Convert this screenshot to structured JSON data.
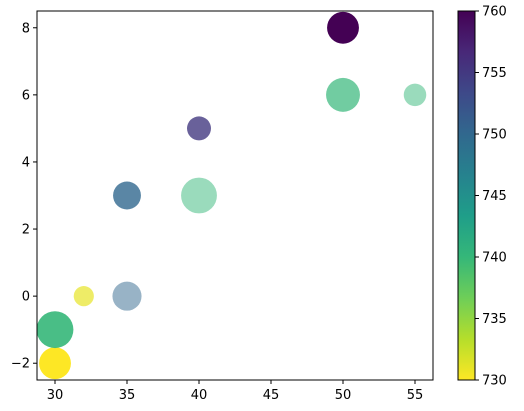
{
  "chart_data": {
    "type": "scatter",
    "title": "",
    "xlabel": "",
    "ylabel": "",
    "xlim": [
      28.75,
      56.25
    ],
    "ylim": [
      -2.5,
      8.5
    ],
    "xticks": [
      30,
      35,
      40,
      45,
      50,
      55
    ],
    "yticks": [
      -2,
      0,
      2,
      4,
      6,
      8
    ],
    "points": [
      {
        "x": 30,
        "y": -2,
        "c": 730,
        "size": 300,
        "alpha": 1.0
      },
      {
        "x": 30,
        "y": -1,
        "c": 740,
        "size": 400,
        "alpha": 0.9
      },
      {
        "x": 32,
        "y": 0,
        "c": 731,
        "size": 120,
        "alpha": 0.7
      },
      {
        "x": 35,
        "y": 0,
        "c": 750,
        "size": 250,
        "alpha": 0.5
      },
      {
        "x": 35,
        "y": 3,
        "c": 750,
        "size": 230,
        "alpha": 0.8
      },
      {
        "x": 40,
        "y": 3,
        "c": 740,
        "size": 380,
        "alpha": 0.5
      },
      {
        "x": 40,
        "y": 5,
        "c": 755,
        "size": 170,
        "alpha": 0.8
      },
      {
        "x": 50,
        "y": 6,
        "c": 740,
        "size": 340,
        "alpha": 0.7
      },
      {
        "x": 50,
        "y": 8,
        "c": 760,
        "size": 300,
        "alpha": 1.0
      },
      {
        "x": 55,
        "y": 6,
        "c": 740,
        "size": 150,
        "alpha": 0.5
      }
    ],
    "colorbar": {
      "min": 730,
      "max": 760,
      "ticks": [
        730,
        735,
        740,
        745,
        750,
        755,
        760
      ],
      "colormap": "viridis_r",
      "colormap_stops": [
        "#fde725",
        "#b5de2b",
        "#6ece58",
        "#35b779",
        "#1f9e89",
        "#26828e",
        "#31688e",
        "#3e4989",
        "#482878",
        "#440154"
      ]
    },
    "grid": false,
    "legend": "none"
  }
}
